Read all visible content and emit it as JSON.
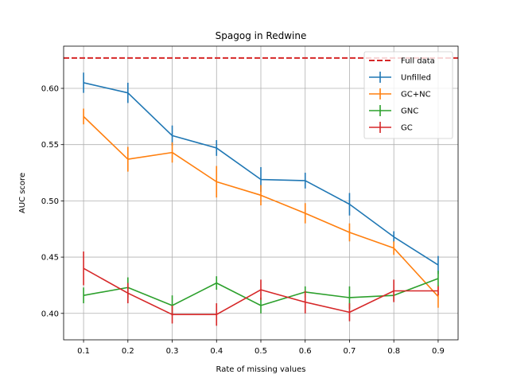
{
  "chart_data": {
    "type": "line",
    "title": "Spagog in Redwine",
    "xlabel": "Rate of missing values",
    "ylabel": "AUC score",
    "x": [
      0.1,
      0.2,
      0.3,
      0.4,
      0.5,
      0.6,
      0.7,
      0.8,
      0.9
    ],
    "x_tick_labels": [
      "0.1",
      "0.2",
      "0.3",
      "0.4",
      "0.5",
      "0.6",
      "0.7",
      "0.8",
      "0.9"
    ],
    "xlim": [
      0.055,
      0.945
    ],
    "ylim": [
      0.3765,
      0.6375
    ],
    "y_ticks": [
      0.4,
      0.45,
      0.5,
      0.55,
      0.6
    ],
    "y_tick_labels": [
      "0.40",
      "0.45",
      "0.50",
      "0.55",
      "0.60"
    ],
    "grid": true,
    "legend_position": "top-right",
    "reference_line": {
      "name": "Full data",
      "value": 0.627,
      "color": "#d62728",
      "style": "dashed"
    },
    "series": [
      {
        "name": "Unfilled",
        "color": "#1f77b4",
        "values": [
          0.605,
          0.596,
          0.558,
          0.547,
          0.519,
          0.518,
          0.497,
          0.468,
          0.443
        ],
        "errors": [
          0.009,
          0.009,
          0.009,
          0.007,
          0.011,
          0.007,
          0.01,
          0.005,
          0.008
        ]
      },
      {
        "name": "GC+NC",
        "color": "#ff7f0e",
        "values": [
          0.575,
          0.537,
          0.543,
          0.517,
          0.505,
          0.489,
          0.472,
          0.458,
          0.415
        ],
        "errors": [
          0.007,
          0.011,
          0.009,
          0.014,
          0.009,
          0.009,
          0.008,
          0.006,
          0.01
        ]
      },
      {
        "name": "GNC",
        "color": "#2ca02c",
        "values": [
          0.416,
          0.423,
          0.407,
          0.427,
          0.407,
          0.419,
          0.414,
          0.416,
          0.431
        ],
        "errors": [
          0.007,
          0.009,
          0.009,
          0.006,
          0.007,
          0.005,
          0.01,
          0.005,
          0.007
        ]
      },
      {
        "name": "GC",
        "color": "#d62728",
        "values": [
          0.44,
          0.418,
          0.399,
          0.399,
          0.421,
          0.41,
          0.401,
          0.42,
          0.42
        ],
        "errors": [
          0.015,
          0.009,
          0.008,
          0.01,
          0.009,
          0.01,
          0.008,
          0.01,
          0.004
        ]
      }
    ]
  }
}
